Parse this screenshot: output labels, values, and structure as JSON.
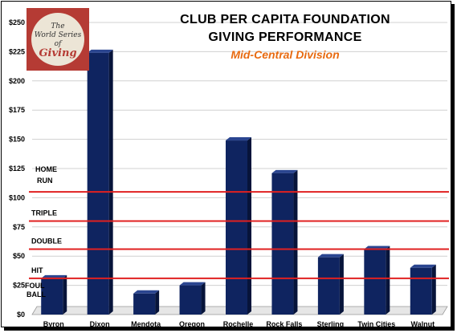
{
  "header": {
    "title_line1": "CLUB PER CAPITA FOUNDATION",
    "title_line2": "GIVING PERFORMANCE",
    "subtitle": "Mid-Central Division",
    "logo_text": "The World Series of Giving"
  },
  "chart_data": {
    "type": "bar",
    "categories": [
      "Byron",
      "Dixon",
      "Mendota",
      "Oregon",
      "Rochelle",
      "Rock Falls",
      "Sterling",
      "Twin Cities",
      "Walnut"
    ],
    "values": [
      31,
      224,
      18,
      25,
      149,
      121,
      49,
      56,
      40
    ],
    "ylim": [
      0,
      250
    ],
    "y_ticks": [
      "$0",
      "$25",
      "$50",
      "$75",
      "$100",
      "$125",
      "$150",
      "$175",
      "$200",
      "$225",
      "$250"
    ],
    "grid": true,
    "bar_color": "#0f2460",
    "reference_lines": [
      {
        "label": "FOUL BALL",
        "value": null
      },
      {
        "label": "HIT",
        "value": 31
      },
      {
        "label": "DOUBLE",
        "value": 56
      },
      {
        "label": "TRIPLE",
        "value": 80
      },
      {
        "label": "HOME RUN",
        "value": 105
      }
    ],
    "reference_line_color": "#e02020"
  }
}
